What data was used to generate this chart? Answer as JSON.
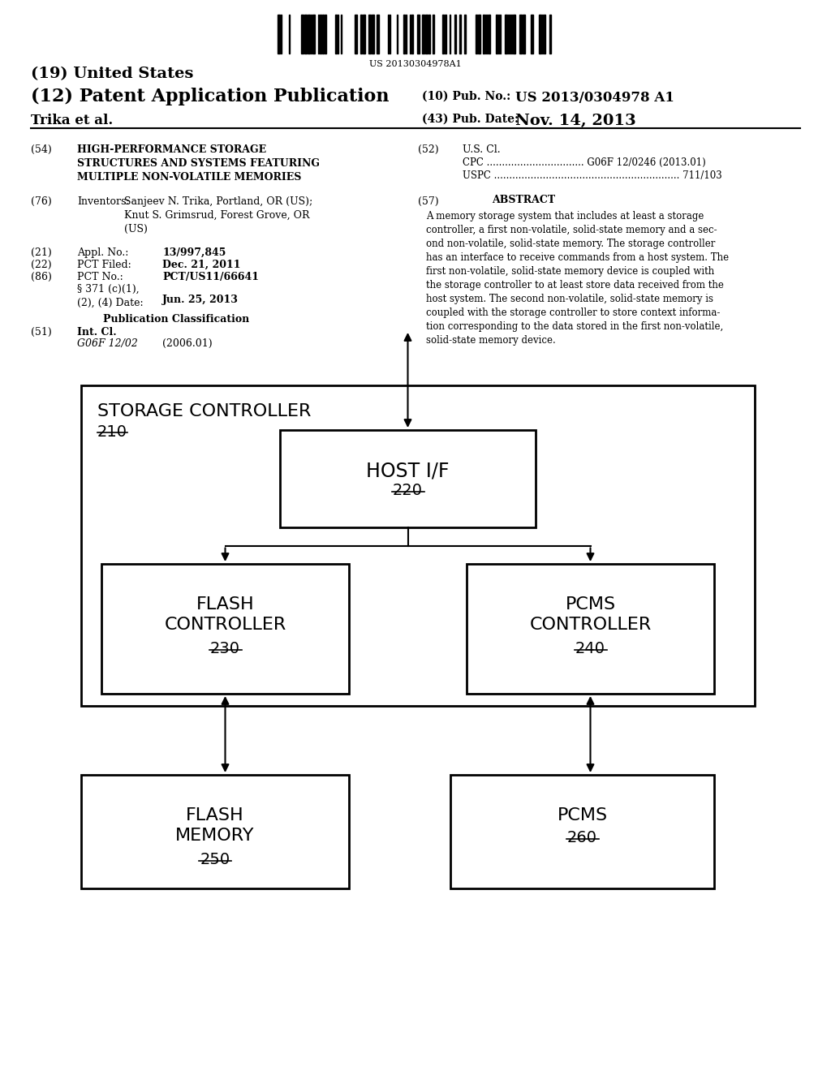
{
  "bg_color": "#ffffff",
  "barcode_text": "US 20130304978A1",
  "title_19": "(19) United States",
  "title_12": "(12) Patent Application Publication",
  "pub_no_label": "(10) Pub. No.:",
  "pub_no_value": "US 2013/0304978 A1",
  "author": "Trika et al.",
  "pub_date_label": "(43) Pub. Date:",
  "pub_date_value": "Nov. 14, 2013",
  "field_54_label": "(54)",
  "field_54_title": "HIGH-PERFORMANCE STORAGE\nSTRUCTURES AND SYSTEMS FEATURING\nMULTIPLE NON-VOLATILE MEMORIES",
  "field_52_label": "(52)",
  "field_52_title": "U.S. Cl.",
  "field_cpc": "CPC ................................ G06F 12/0246 (2013.01)",
  "field_uspc": "USPC ............................................................. 711/103",
  "field_76_label": "(76)",
  "field_76_title": "Inventors:",
  "field_76_inventors": "Sanjeev N. Trika, Portland, OR (US);\nKnut S. Grimsrud, Forest Grove, OR\n(US)",
  "field_57_label": "(57)",
  "field_57_title": "ABSTRACT",
  "abstract_text": "A memory storage system that includes at least a storage\ncontroller, a first non-volatile, solid-state memory and a sec-\nond non-volatile, solid-state memory. The storage controller\nhas an interface to receive commands from a host system. The\nfirst non-volatile, solid-state memory device is coupled with\nthe storage controller to at least store data received from the\nhost system. The second non-volatile, solid-state memory is\ncoupled with the storage controller to store context informa-\ntion corresponding to the data stored in the first non-volatile,\nsolid-state memory device.",
  "field_21_label": "(21)",
  "field_21_title": "Appl. No.:",
  "field_21_value": "13/997,845",
  "field_22_label": "(22)",
  "field_22_title": "PCT Filed:",
  "field_22_value": "Dec. 21, 2011",
  "field_86_label": "(86)",
  "field_86_title": "PCT No.:",
  "field_86_value": "PCT/US11/66641",
  "field_371_text": "§ 371 (c)(1),\n(2), (4) Date:",
  "field_371_value": "Jun. 25, 2013",
  "field_pub_class": "Publication Classification",
  "field_51_label": "(51)",
  "field_51_title": "Int. Cl.",
  "field_51_class": "G06F 12/02",
  "field_51_year": "(2006.01)",
  "diagram_storage_controller_label": "STORAGE CONTROLLER",
  "diagram_storage_controller_num": "210",
  "diagram_host_if_label": "HOST I/F",
  "diagram_host_if_num": "220",
  "diagram_flash_ctrl_label": "FLASH\nCONTROLLER",
  "diagram_flash_ctrl_num": "230",
  "diagram_pcms_ctrl_label": "PCMS\nCONTROLLER",
  "diagram_pcms_ctrl_num": "240",
  "diagram_flash_mem_label": "FLASH\nMEMORY",
  "diagram_flash_mem_num": "250",
  "diagram_pcms_mem_label": "PCMS",
  "diagram_pcms_mem_num": "260"
}
